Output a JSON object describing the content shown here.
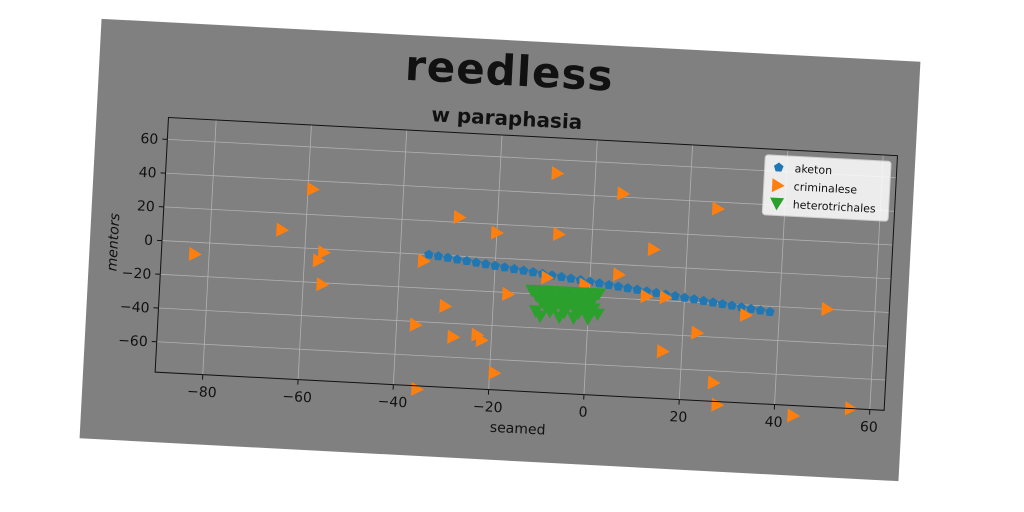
{
  "chart_data": {
    "type": "scatter",
    "title": "reedless",
    "subtitle": "w paraphasia",
    "xlabel": "seamed",
    "ylabel": "mentors",
    "xlim": [
      -90,
      63
    ],
    "ylim": [
      -78,
      73
    ],
    "xticks": [
      -80,
      -60,
      -40,
      -20,
      0,
      20,
      40,
      60
    ],
    "yticks": [
      -60,
      -40,
      -20,
      0,
      20,
      40,
      60
    ],
    "grid": true,
    "legend_position": "top-right",
    "series": [
      {
        "name": "aketon",
        "marker": "pentagon",
        "color": "#1f77b4",
        "x": [
          -34,
          -32,
          -30,
          -28,
          -26,
          -24,
          -22,
          -20,
          -18,
          -16,
          -14,
          -12,
          -10,
          -8,
          -6,
          -4,
          -2,
          0,
          2,
          4,
          6,
          8,
          10,
          12,
          14,
          16,
          18,
          20,
          22,
          24,
          26,
          28,
          30,
          32,
          34,
          36,
          38
        ],
        "y": [
          0,
          -0.7,
          -1.3,
          -2.0,
          -2.6,
          -3.3,
          -3.9,
          -4.6,
          -5.2,
          -5.9,
          -6.5,
          -7.2,
          -7.8,
          -8.5,
          -9.1,
          -9.8,
          -10.4,
          -11.1,
          -11.7,
          -12.4,
          -13.0,
          -13.7,
          -14.3,
          -15.0,
          -15.6,
          -16.3,
          -16.9,
          -17.6,
          -18.2,
          -18.9,
          -19.5,
          -20.2,
          -20.8,
          -21.5,
          -22.1,
          -22.8,
          -23.4
        ]
      },
      {
        "name": "criminalese",
        "marker": "triangle-right",
        "color": "#ff7f0e",
        "x": [
          -83,
          -65,
          -59,
          -56,
          -57,
          -56,
          -35,
          -28,
          -20,
          -8,
          -7,
          -9,
          -35,
          -30,
          -36,
          -28,
          -23,
          -22,
          -19,
          -17,
          -35,
          6,
          6,
          13,
          12,
          16,
          16,
          26,
          23,
          27,
          33,
          28,
          50,
          56,
          44,
          -1
        ],
        "y": [
          -7,
          10,
          35,
          -2,
          -7,
          -21,
          -4,
          23,
          15,
          52,
          16,
          -10,
          -4,
          -30,
          -42,
          -48,
          -46,
          -49,
          -68,
          -21,
          -80,
          42,
          -6,
          10,
          -18,
          -18,
          -50,
          36,
          -38,
          -67,
          -26,
          -80,
          -20,
          -78,
          -84,
          -13
        ]
      },
      {
        "name": "heterotrichales",
        "marker": "triangle-down",
        "color": "#2ca02c",
        "x": [
          -12,
          -10,
          -8,
          -6,
          -4,
          -2,
          0,
          2,
          -11,
          -9,
          -7,
          -5,
          -3,
          -1,
          1,
          -10,
          -8,
          -6,
          -4,
          -2,
          0,
          -9,
          -7,
          -5,
          -3,
          -1,
          1,
          -11,
          -8,
          -5,
          -2,
          0,
          2,
          -10,
          -6,
          -3,
          0
        ],
        "y": [
          -18,
          -18,
          -18,
          -18,
          -18,
          -18,
          -18,
          -18,
          -21,
          -21,
          -21,
          -21,
          -21,
          -21,
          -21,
          -24,
          -24,
          -24,
          -24,
          -24,
          -24,
          -27,
          -27,
          -27,
          -27,
          -27,
          -27,
          -30,
          -30,
          -30,
          -30,
          -30,
          -30,
          -33,
          -33,
          -33,
          -33
        ]
      }
    ]
  }
}
